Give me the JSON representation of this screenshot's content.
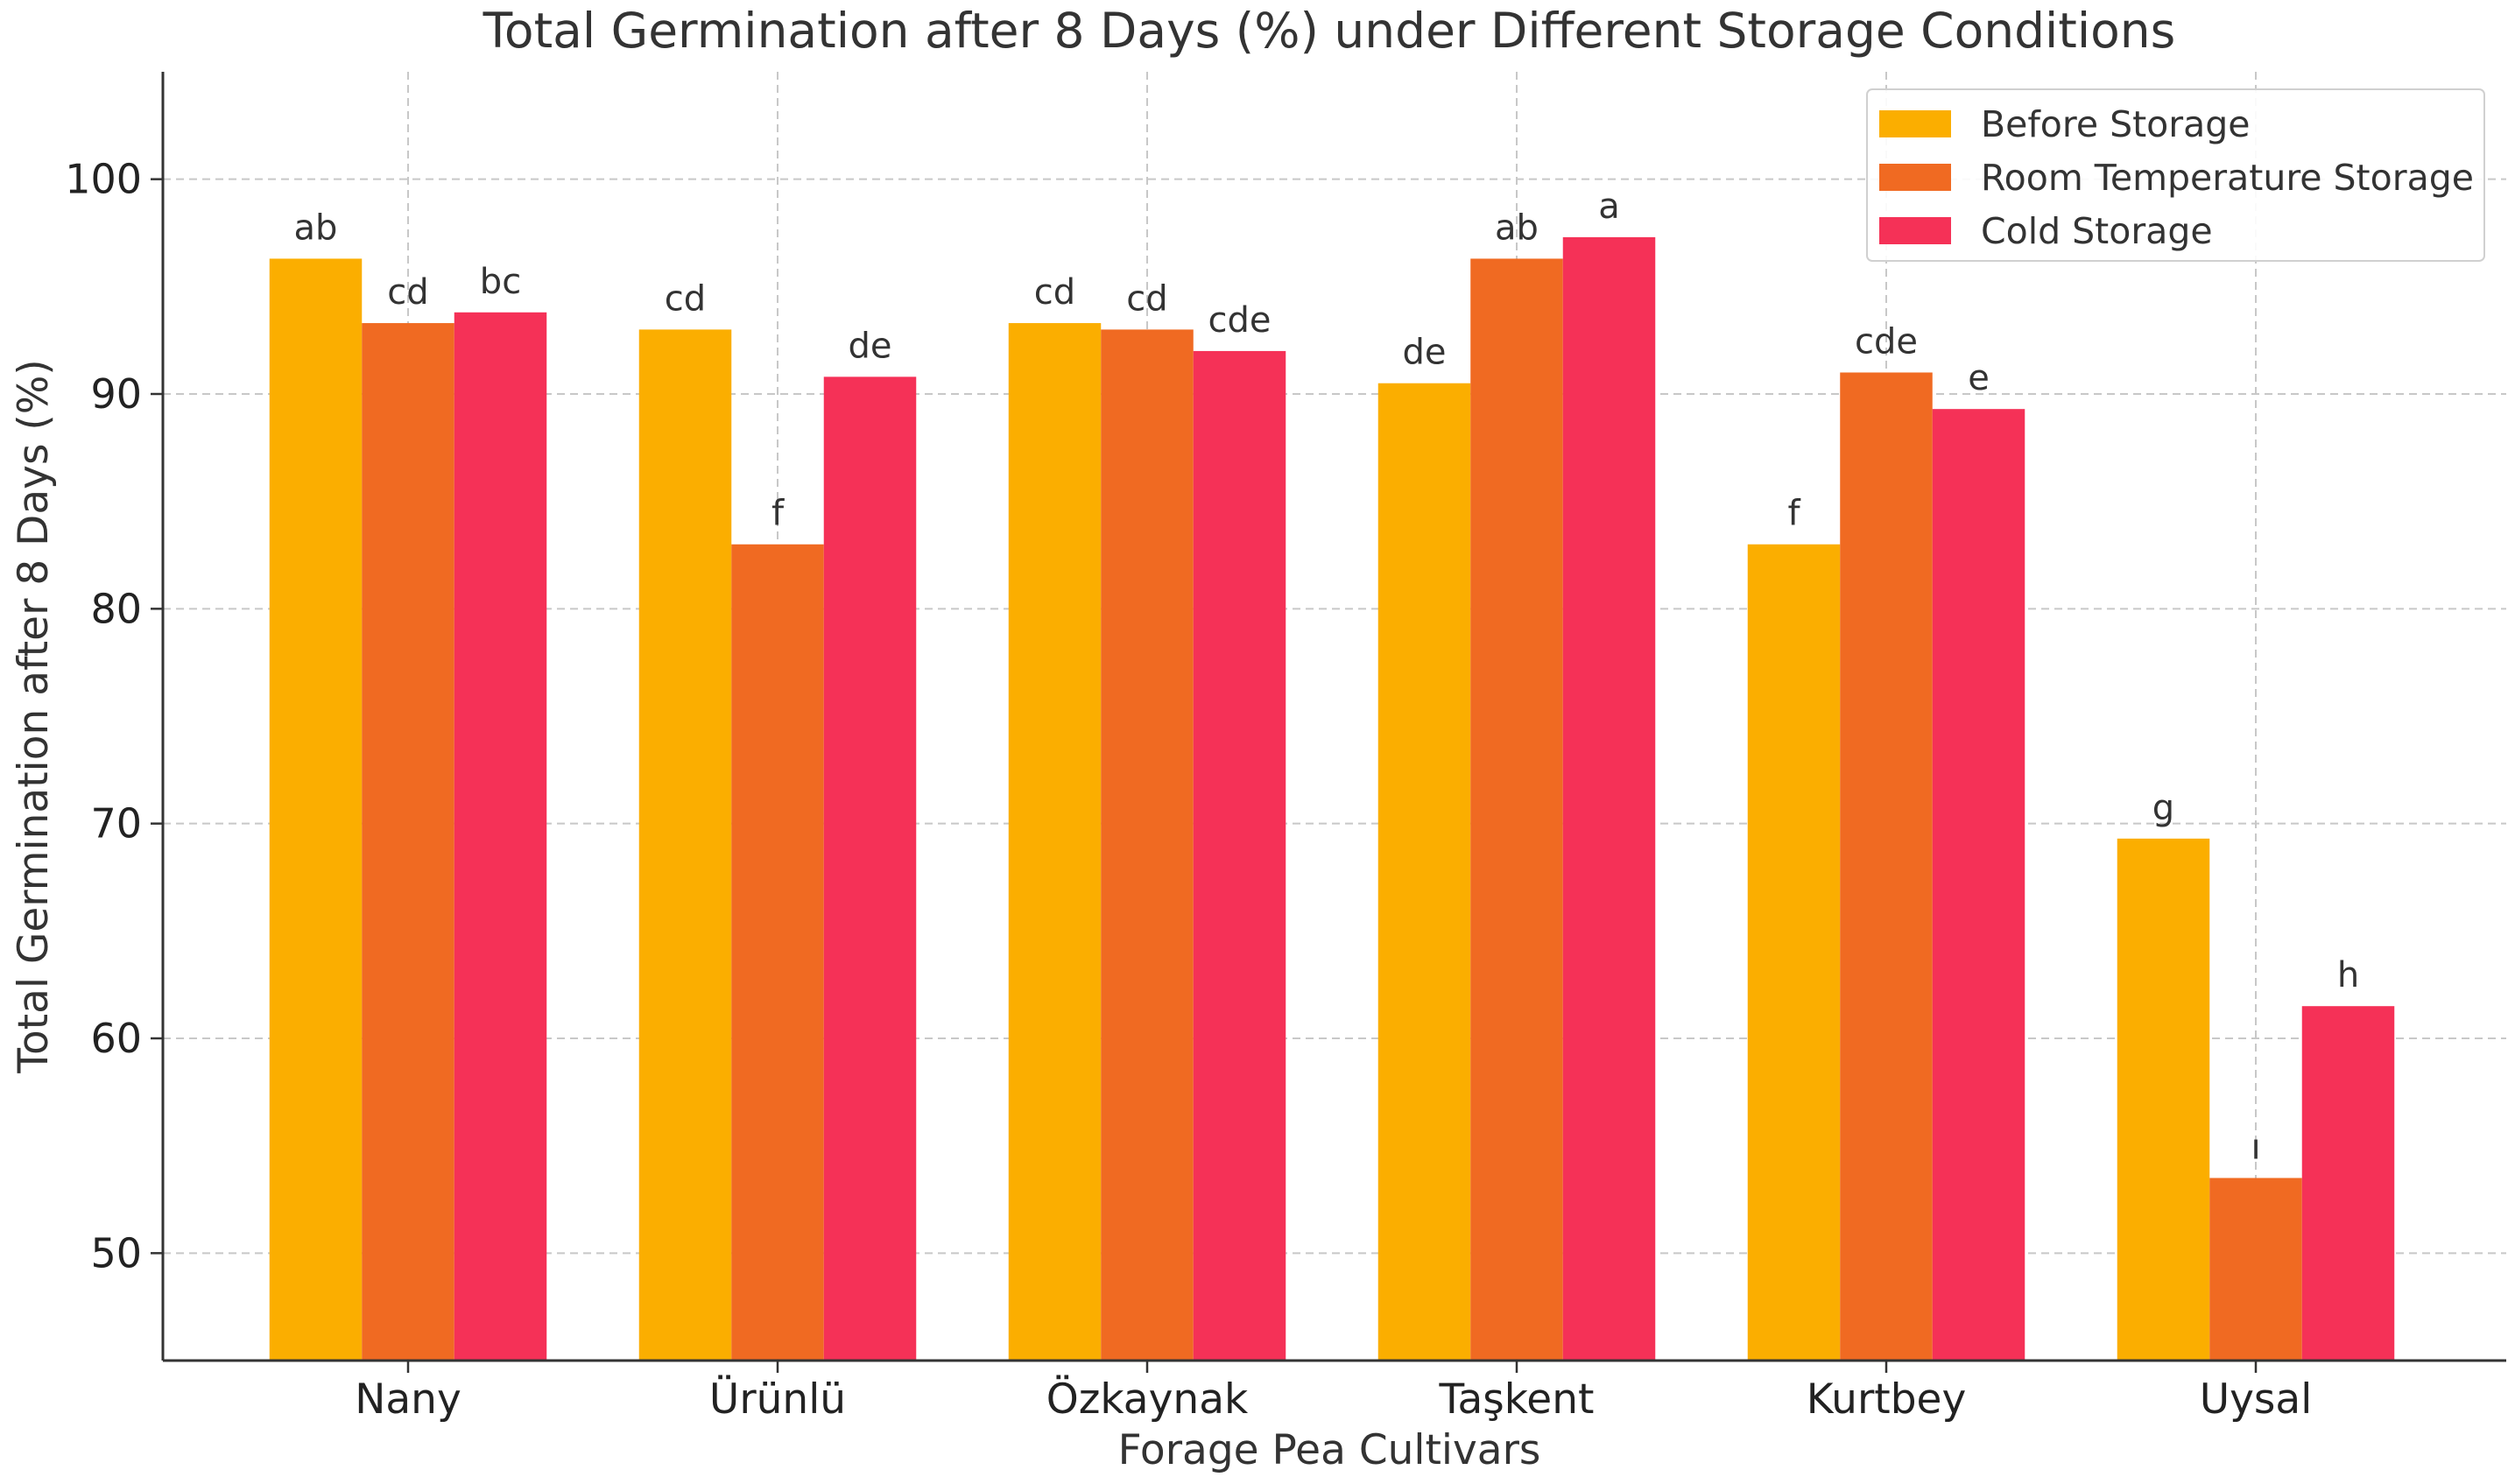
{
  "chart_data": {
    "type": "bar",
    "title": "Total Germination after 8 Days (%) under Different Storage Conditions",
    "xlabel": "Forage Pea Cultivars",
    "ylabel": "Total Germination after 8 Days (%)",
    "ylim": [
      45,
      105
    ],
    "yticks": [
      50,
      60,
      70,
      80,
      90,
      100
    ],
    "grid": true,
    "legend_position": "top-right",
    "categories": [
      "Nany",
      "Ürünlü",
      "Özkaynak",
      "Taşkent",
      "Kurtbey",
      "Uysal"
    ],
    "series": [
      {
        "name": "Before Storage",
        "color": "#FBAE00",
        "values": [
          96.3,
          93.0,
          93.3,
          90.5,
          83.0,
          69.3
        ],
        "labels": [
          "ab",
          "cd",
          "cd",
          "de",
          "f",
          "g"
        ]
      },
      {
        "name": "Room Temperature Storage",
        "color": "#F06A22",
        "values": [
          93.3,
          83.0,
          93.0,
          96.3,
          91.0,
          53.5
        ],
        "labels": [
          "cd",
          "f",
          "cd",
          "ab",
          "cde",
          "ı"
        ]
      },
      {
        "name": "Cold Storage",
        "color": "#F53157",
        "values": [
          93.8,
          90.8,
          92.0,
          97.3,
          89.3,
          61.5
        ],
        "labels": [
          "bc",
          "de",
          "cde",
          "a",
          "e",
          "h"
        ]
      }
    ]
  }
}
